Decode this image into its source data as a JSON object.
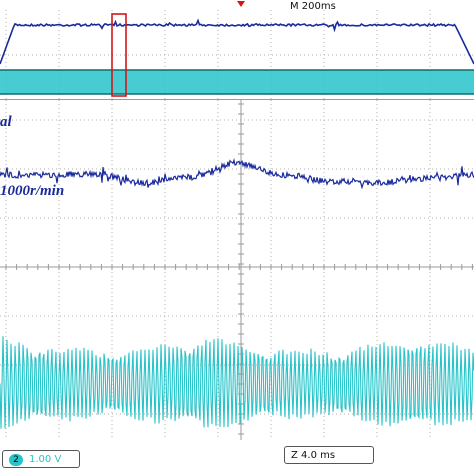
{
  "scope": {
    "timebase_main": "M 200ms",
    "zoom": "Z 4.0 ms",
    "trace_label_top": "al",
    "trace_label_speed": "1000r/min",
    "channel": {
      "number": "2",
      "scale": "1.00 V",
      "color": "#27c4c9"
    },
    "trace_color": "#1a2a9c",
    "trigger_marker_color": "#d01818",
    "zoom_window_color": "#d01818"
  },
  "chart_data": [
    {
      "type": "line",
      "panel": "overview",
      "series": [
        {
          "values": [
            0.0,
            1.0,
            1.0,
            1.0,
            1.0,
            1.0,
            1.0,
            1.0,
            1.0,
            0.0
          ],
          "x": [
            0.0,
            0.03,
            0.2,
            0.4,
            0.6,
            0.8,
            0.9,
            0.945,
            0.96,
            1.0
          ]
        }
      ],
      "grid": true
    },
    {
      "type": "line",
      "panel": "zoom",
      "series": [
        {
          "x": [
            0.0,
            0.1,
            0.2,
            0.3,
            0.4,
            0.5,
            0.6,
            0.7,
            0.8,
            0.9,
            1.0
          ],
          "values": [
            0.0,
            0.0,
            0.05,
            -0.35,
            -0.1,
            0.55,
            0.0,
            -0.3,
            -0.35,
            -0.15,
            0.0
          ]
        }
      ],
      "grid": true
    }
  ]
}
